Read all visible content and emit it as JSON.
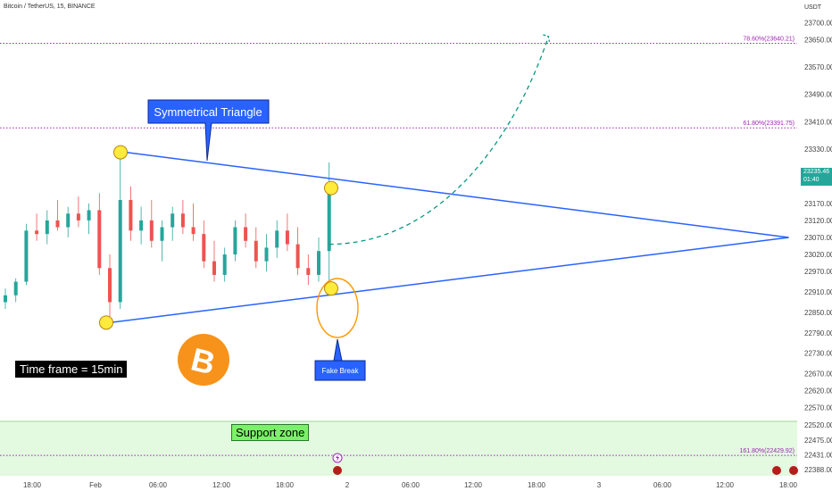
{
  "header": {
    "title": "Bitcoin / TetherUS, 15, BINANCE",
    "currency": "USDT"
  },
  "price_badge": {
    "price": "23235.46",
    "countdown": "01:40"
  },
  "annotations": {
    "symmetrical_triangle": "Symmetrical Triangle",
    "fake_break": "Fake Break",
    "time_frame": "Time frame = 15min",
    "support_zone": "Support zone"
  },
  "fib_levels": [
    {
      "label": "78.60%(23640.21)",
      "value": 23640.21
    },
    {
      "label": "61.80%(23391.75)",
      "value": 23391.75
    },
    {
      "label": "161.80%(22429.92)",
      "value": 22429.92
    }
  ],
  "colors": {
    "up": "#26a69a",
    "down": "#ef5350",
    "triangle": "#2962ff",
    "projection": "#089981",
    "fib": "#9c27b0",
    "support": "#e3f9e0",
    "bitcoin": "#f7931a"
  },
  "chart_data": {
    "type": "candlestick",
    "y_ticks": [
      "23700.00",
      "23650.00",
      "23570.00",
      "23490.00",
      "23410.00",
      "23330.00",
      "23250.00",
      "23170.00",
      "23120.00",
      "23070.00",
      "23020.00",
      "22970.00",
      "22910.00",
      "22850.00",
      "22790.00",
      "22730.00",
      "22670.00",
      "22620.00",
      "22570.00",
      "22520.00",
      "22475.00",
      "22431.00",
      "22388.00"
    ],
    "x_ticks": [
      "18:00",
      "Feb",
      "06:00",
      "12:00",
      "18:00",
      "2",
      "06:00",
      "12:00",
      "18:00",
      "3",
      "06:00",
      "12:00",
      "18:00"
    ],
    "ylim": [
      22370,
      23720
    ],
    "support_zone": [
      22370,
      22530
    ],
    "triangle": {
      "upper_start": {
        "x_index": 10,
        "y": 23320
      },
      "apex": {
        "x_index": 75,
        "y": 23070
      },
      "lower_start": {
        "x_index": 10,
        "y": 22820
      }
    },
    "highlighted_points": [
      {
        "x_index": 10,
        "y": 23320
      },
      {
        "x_index": 10,
        "y": 22820
      },
      {
        "x_index": 31,
        "y": 23215
      },
      {
        "x_index": 31,
        "y": 22920
      }
    ],
    "candles": [
      [
        22880,
        22920,
        22860,
        22900
      ],
      [
        22900,
        22950,
        22880,
        22940
      ],
      [
        22940,
        23110,
        22930,
        23090
      ],
      [
        23090,
        23140,
        23060,
        23080
      ],
      [
        23080,
        23150,
        23050,
        23120
      ],
      [
        23120,
        23180,
        23090,
        23100
      ],
      [
        23100,
        23160,
        23070,
        23140
      ],
      [
        23140,
        23190,
        23100,
        23120
      ],
      [
        23120,
        23170,
        23080,
        23150
      ],
      [
        23150,
        23200,
        22960,
        22980
      ],
      [
        22980,
        23020,
        22820,
        22880
      ],
      [
        22880,
        23330,
        22860,
        23180
      ],
      [
        23180,
        23220,
        23060,
        23090
      ],
      [
        23090,
        23160,
        23050,
        23120
      ],
      [
        23120,
        23180,
        23040,
        23060
      ],
      [
        23060,
        23120,
        23000,
        23100
      ],
      [
        23100,
        23160,
        23060,
        23140
      ],
      [
        23140,
        23180,
        23080,
        23100
      ],
      [
        23100,
        23170,
        23060,
        23080
      ],
      [
        23080,
        23120,
        22980,
        23000
      ],
      [
        23000,
        23060,
        22940,
        22960
      ],
      [
        22960,
        23040,
        22940,
        23020
      ],
      [
        23020,
        23120,
        23000,
        23100
      ],
      [
        23100,
        23140,
        23040,
        23060
      ],
      [
        23060,
        23100,
        22980,
        23000
      ],
      [
        23000,
        23080,
        22970,
        23040
      ],
      [
        23040,
        23120,
        23010,
        23090
      ],
      [
        23090,
        23140,
        23030,
        23050
      ],
      [
        23050,
        23100,
        22960,
        22980
      ],
      [
        22980,
        23020,
        22930,
        22960
      ],
      [
        22960,
        23070,
        22940,
        23030
      ],
      [
        23030,
        23290,
        22940,
        23230
      ]
    ],
    "projection": {
      "from": {
        "x_index": 31,
        "y": 23050
      },
      "to": {
        "x_index": 52,
        "y": 23660
      }
    }
  }
}
